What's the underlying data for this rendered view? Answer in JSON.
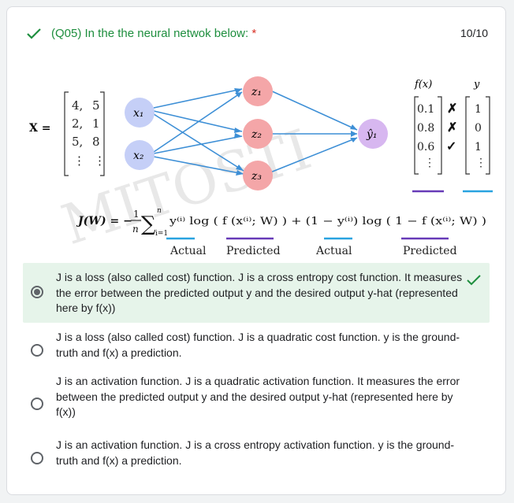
{
  "question": {
    "title": "(Q05)  In the the neural netwok below:",
    "required_mark": "*",
    "score": "10/10"
  },
  "figure": {
    "x_label": "X =",
    "x_matrix": [
      [
        "4,",
        "5"
      ],
      [
        "2,",
        "1"
      ],
      [
        "5,",
        "8"
      ],
      [
        "⋮",
        "⋮"
      ]
    ],
    "nodes": {
      "x1": "x₁",
      "x2": "x₂",
      "z1": "z₁",
      "z2": "z₂",
      "z3": "z₃",
      "y_hat": "ŷ₁"
    },
    "fx_header": "f(x)",
    "y_header": "y",
    "fx_values": [
      "0.1",
      "0.8",
      "0.6",
      "⋮"
    ],
    "y_values": [
      "1",
      "0",
      "1",
      "⋮"
    ],
    "marks": [
      "✗",
      "✗",
      "✓"
    ],
    "watermark": "MITOSTI",
    "formula": {
      "lhs": "J(W) = −",
      "frac_num": "1",
      "frac_den": "n",
      "sum_top": "n",
      "sum_bottom": "i=1",
      "body": "y⁽ⁱ⁾ log ( f (x⁽ⁱ⁾; W) ) + (1 − y⁽ⁱ⁾) log ( 1 − f (x⁽ⁱ⁾; W) )"
    },
    "labels": [
      "Actual",
      "Predicted",
      "Actual",
      "Predicted"
    ],
    "colors": {
      "predicted": "#673ab7",
      "actual": "#29a3e0",
      "input_node": "#c5cff7",
      "hidden_node": "#f4a6a8",
      "output_node": "#d7b7f0",
      "edge": "#3d8fd6"
    }
  },
  "options": [
    {
      "text": "J is a loss (also called cost) function. J is a cross entropy cost function. It measures the error between the predicted output y and the desired output y-hat (represented here by f(x))",
      "selected": true,
      "correct": true
    },
    {
      "text": "J is a loss (also called cost) function. J is a quadratic cost function. y is the ground-truth and f(x) a prediction.",
      "selected": false,
      "correct": false
    },
    {
      "text": "J is an activation function. J is a quadratic activation function. It measures the error between the predicted output y and the desired output y-hat (represented here by f(x))",
      "selected": false,
      "correct": false
    },
    {
      "text": "J is an activation function. J is a cross entropy activation function. y is the ground-truth and f(x) a prediction.",
      "selected": false,
      "correct": false
    }
  ]
}
